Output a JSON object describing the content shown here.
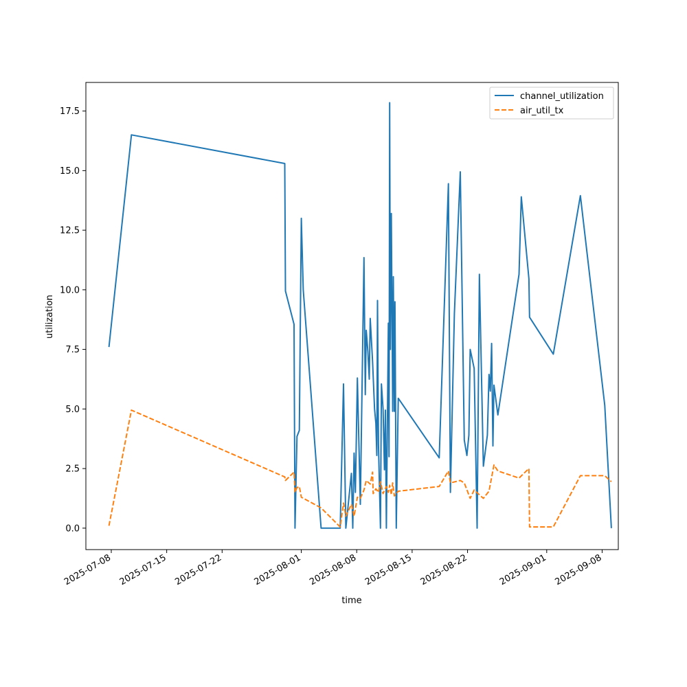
{
  "chart_data": {
    "type": "line",
    "xlabel": "time",
    "ylabel": "utilization",
    "x_tick_labels": [
      "2025-07-08",
      "2025-07-15",
      "2025-07-22",
      "2025-08-01",
      "2025-08-08",
      "2025-08-15",
      "2025-08-22",
      "2025-09-01",
      "2025-09-08"
    ],
    "y_tick_labels": [
      "0.0",
      "2.5",
      "5.0",
      "7.5",
      "10.0",
      "12.5",
      "15.0",
      "17.5"
    ],
    "xlim": [
      "2025-07-04T19:00",
      "2025-09-10T01:00"
    ],
    "ylim": [
      -0.9,
      18.7
    ],
    "grid": false,
    "legend_position": "top-right",
    "series": [
      {
        "name": "channel_utilization",
        "color": "#1f77b4",
        "dash": "solid",
        "points": [
          [
            "2025-07-07T17:00",
            7.6
          ],
          [
            "2025-07-10T13:00",
            16.5
          ],
          [
            "2025-07-29T22:00",
            15.3
          ],
          [
            "2025-07-30T00:00",
            9.95
          ],
          [
            "2025-07-31T02:00",
            8.55
          ],
          [
            "2025-07-31T05:00",
            0.0
          ],
          [
            "2025-07-31T11:00",
            3.85
          ],
          [
            "2025-07-31T18:00",
            4.1
          ],
          [
            "2025-08-01T00:00",
            13.0
          ],
          [
            "2025-08-01T06:00",
            10.0
          ],
          [
            "2025-08-03T12:00",
            0.0
          ],
          [
            "2025-08-05T22:00",
            0.0
          ],
          [
            "2025-08-06T08:00",
            6.05
          ],
          [
            "2025-08-06T15:00",
            0.0
          ],
          [
            "2025-08-07T08:00",
            2.3
          ],
          [
            "2025-08-07T12:00",
            0.0
          ],
          [
            "2025-08-07T16:00",
            3.15
          ],
          [
            "2025-08-07T20:00",
            1.5
          ],
          [
            "2025-08-08T02:00",
            6.3
          ],
          [
            "2025-08-08T11:00",
            1.0
          ],
          [
            "2025-08-08T22:00",
            11.35
          ],
          [
            "2025-08-09T02:00",
            5.6
          ],
          [
            "2025-08-09T05:00",
            8.3
          ],
          [
            "2025-08-09T10:00",
            7.4
          ],
          [
            "2025-08-09T14:00",
            6.25
          ],
          [
            "2025-08-09T17:00",
            8.8
          ],
          [
            "2025-08-10T00:00",
            7.0
          ],
          [
            "2025-08-10T06:00",
            5.0
          ],
          [
            "2025-08-10T10:00",
            4.4
          ],
          [
            "2025-08-10T13:00",
            3.05
          ],
          [
            "2025-08-10T15:00",
            9.55
          ],
          [
            "2025-08-10T18:00",
            3.5
          ],
          [
            "2025-08-11T00:00",
            0.0
          ],
          [
            "2025-08-11T03:00",
            6.05
          ],
          [
            "2025-08-11T08:00",
            5.0
          ],
          [
            "2025-08-11T12:00",
            2.45
          ],
          [
            "2025-08-11T15:00",
            4.95
          ],
          [
            "2025-08-11T18:00",
            0.0
          ],
          [
            "2025-08-12T00:00",
            8.6
          ],
          [
            "2025-08-12T02:00",
            3.0
          ],
          [
            "2025-08-12T04:00",
            17.85
          ],
          [
            "2025-08-12T06:00",
            7.5
          ],
          [
            "2025-08-12T09:00",
            13.2
          ],
          [
            "2025-08-12T13:00",
            4.9
          ],
          [
            "2025-08-12T15:00",
            10.55
          ],
          [
            "2025-08-12T18:00",
            4.9
          ],
          [
            "2025-08-12T20:00",
            9.5
          ],
          [
            "2025-08-13T00:00",
            0.0
          ],
          [
            "2025-08-13T06:00",
            5.45
          ],
          [
            "2025-08-18T10:00",
            2.95
          ],
          [
            "2025-08-19T14:00",
            14.45
          ],
          [
            "2025-08-19T20:00",
            1.5
          ],
          [
            "2025-08-20T08:00",
            9.0
          ],
          [
            "2025-08-21T02:00",
            14.95
          ],
          [
            "2025-08-21T14:00",
            3.7
          ],
          [
            "2025-08-21T22:00",
            3.05
          ],
          [
            "2025-08-22T04:00",
            3.9
          ],
          [
            "2025-08-22T08:00",
            7.5
          ],
          [
            "2025-08-22T20:00",
            6.7
          ],
          [
            "2025-08-23T05:00",
            0.0
          ],
          [
            "2025-08-23T12:00",
            10.65
          ],
          [
            "2025-08-24T00:00",
            2.6
          ],
          [
            "2025-08-24T12:00",
            3.9
          ],
          [
            "2025-08-24T17:00",
            6.45
          ],
          [
            "2025-08-24T21:00",
            5.75
          ],
          [
            "2025-08-25T01:00",
            7.75
          ],
          [
            "2025-08-25T05:00",
            3.45
          ],
          [
            "2025-08-25T08:00",
            6.0
          ],
          [
            "2025-08-25T20:00",
            4.75
          ],
          [
            "2025-08-28T12:00",
            10.65
          ],
          [
            "2025-08-28T19:00",
            13.9
          ],
          [
            "2025-08-29T18:00",
            10.45
          ],
          [
            "2025-08-29T20:00",
            8.85
          ],
          [
            "2025-09-01T20:00",
            7.3
          ],
          [
            "2025-09-05T06:00",
            13.95
          ],
          [
            "2025-09-08T08:00",
            5.15
          ],
          [
            "2025-09-09T04:00",
            0.0
          ]
        ]
      },
      {
        "name": "air_util_tx",
        "color": "#ff7f0e",
        "dash": "dashed",
        "points": [
          [
            "2025-07-07T17:00",
            0.1
          ],
          [
            "2025-07-10T13:00",
            4.95
          ],
          [
            "2025-07-29T22:00",
            2.15
          ],
          [
            "2025-07-30T00:00",
            2.0
          ],
          [
            "2025-07-31T02:00",
            2.35
          ],
          [
            "2025-07-31T05:00",
            1.5
          ],
          [
            "2025-07-31T11:00",
            1.7
          ],
          [
            "2025-07-31T18:00",
            1.75
          ],
          [
            "2025-08-01T00:00",
            1.3
          ],
          [
            "2025-08-03T12:00",
            0.85
          ],
          [
            "2025-08-05T22:00",
            0.05
          ],
          [
            "2025-08-06T08:00",
            1.05
          ],
          [
            "2025-08-06T15:00",
            0.5
          ],
          [
            "2025-08-07T08:00",
            1.0
          ],
          [
            "2025-08-07T16:00",
            0.5
          ],
          [
            "2025-08-08T02:00",
            1.3
          ],
          [
            "2025-08-08T11:00",
            1.25
          ],
          [
            "2025-08-08T22:00",
            1.6
          ],
          [
            "2025-08-09T05:00",
            2.0
          ],
          [
            "2025-08-09T17:00",
            1.85
          ],
          [
            "2025-08-10T00:00",
            2.35
          ],
          [
            "2025-08-10T02:00",
            1.45
          ],
          [
            "2025-08-10T10:00",
            1.65
          ],
          [
            "2025-08-10T18:00",
            1.5
          ],
          [
            "2025-08-11T00:00",
            1.95
          ],
          [
            "2025-08-11T08:00",
            1.45
          ],
          [
            "2025-08-11T18:00",
            1.75
          ],
          [
            "2025-08-12T00:00",
            1.5
          ],
          [
            "2025-08-12T04:00",
            1.8
          ],
          [
            "2025-08-12T09:00",
            1.4
          ],
          [
            "2025-08-12T13:00",
            1.9
          ],
          [
            "2025-08-12T18:00",
            1.35
          ],
          [
            "2025-08-13T06:00",
            1.55
          ],
          [
            "2025-08-18T10:00",
            1.75
          ],
          [
            "2025-08-19T14:00",
            2.4
          ],
          [
            "2025-08-19T20:00",
            1.9
          ],
          [
            "2025-08-21T02:00",
            2.0
          ],
          [
            "2025-08-21T14:00",
            1.9
          ],
          [
            "2025-08-22T08:00",
            1.25
          ],
          [
            "2025-08-22T20:00",
            1.6
          ],
          [
            "2025-08-24T00:00",
            1.25
          ],
          [
            "2025-08-24T17:00",
            1.55
          ],
          [
            "2025-08-25T08:00",
            2.65
          ],
          [
            "2025-08-25T20:00",
            2.4
          ],
          [
            "2025-08-28T12:00",
            2.1
          ],
          [
            "2025-08-29T18:00",
            2.5
          ],
          [
            "2025-08-29T20:00",
            0.05
          ],
          [
            "2025-09-01T20:00",
            0.05
          ],
          [
            "2025-09-05T06:00",
            2.2
          ],
          [
            "2025-09-08T08:00",
            2.2
          ],
          [
            "2025-09-09T04:00",
            1.95
          ]
        ]
      }
    ]
  }
}
